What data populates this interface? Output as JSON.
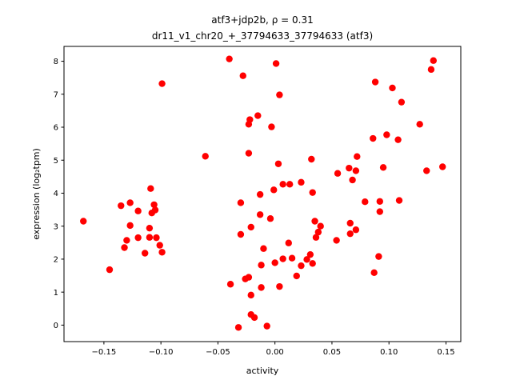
{
  "chart_data": {
    "type": "scatter",
    "title_line1": "atf3+jdp2b, ρ = 0.31",
    "title_line2": "dr11_v1_chr20_+_37794633_37794633 (atf3)",
    "xlabel": "activity",
    "ylabel": "expression (log₂tpm)",
    "xlim": [
      -0.185,
      0.163
    ],
    "ylim": [
      -0.5,
      8.45
    ],
    "xticks": [
      -0.15,
      -0.1,
      -0.05,
      0.0,
      0.05,
      0.1,
      0.15
    ],
    "xtick_labels": [
      "−0.15",
      "−0.10",
      "−0.05",
      "0.00",
      "0.05",
      "0.10",
      "0.15"
    ],
    "yticks": [
      0,
      1,
      2,
      3,
      4,
      5,
      6,
      7,
      8
    ],
    "ytick_labels": [
      "0",
      "1",
      "2",
      "3",
      "4",
      "5",
      "6",
      "7",
      "8"
    ],
    "grid": false,
    "marker_color": "#ff0000",
    "points": [
      [
        -0.168,
        3.15
      ],
      [
        -0.145,
        1.68
      ],
      [
        -0.135,
        3.62
      ],
      [
        -0.132,
        2.35
      ],
      [
        -0.13,
        2.57
      ],
      [
        -0.127,
        3.71
      ],
      [
        -0.127,
        3.02
      ],
      [
        -0.12,
        2.65
      ],
      [
        -0.12,
        3.46
      ],
      [
        -0.114,
        2.18
      ],
      [
        -0.11,
        2.94
      ],
      [
        -0.11,
        2.66
      ],
      [
        -0.109,
        4.14
      ],
      [
        -0.108,
        3.4
      ],
      [
        -0.106,
        3.65
      ],
      [
        -0.105,
        3.49
      ],
      [
        -0.104,
        2.65
      ],
      [
        -0.101,
        2.42
      ],
      [
        -0.099,
        2.21
      ],
      [
        -0.099,
        7.32
      ],
      [
        -0.061,
        5.12
      ],
      [
        -0.04,
        8.07
      ],
      [
        -0.039,
        1.24
      ],
      [
        -0.032,
        -0.07
      ],
      [
        -0.03,
        3.71
      ],
      [
        -0.03,
        2.75
      ],
      [
        -0.028,
        7.56
      ],
      [
        -0.026,
        1.4
      ],
      [
        -0.023,
        1.45
      ],
      [
        -0.023,
        6.09
      ],
      [
        -0.023,
        5.21
      ],
      [
        -0.022,
        6.23
      ],
      [
        -0.021,
        2.97
      ],
      [
        -0.021,
        0.91
      ],
      [
        -0.021,
        0.32
      ],
      [
        -0.018,
        0.23
      ],
      [
        -0.015,
        6.35
      ],
      [
        -0.013,
        3.96
      ],
      [
        -0.013,
        3.35
      ],
      [
        -0.012,
        1.82
      ],
      [
        -0.012,
        1.14
      ],
      [
        -0.01,
        2.32
      ],
      [
        -0.007,
        -0.03
      ],
      [
        -0.004,
        3.23
      ],
      [
        -0.003,
        6.01
      ],
      [
        -0.001,
        4.1
      ],
      [
        0.0,
        1.89
      ],
      [
        0.001,
        7.93
      ],
      [
        0.003,
        4.89
      ],
      [
        0.004,
        6.98
      ],
      [
        0.004,
        1.17
      ],
      [
        0.007,
        4.27
      ],
      [
        0.007,
        2.01
      ],
      [
        0.012,
        2.49
      ],
      [
        0.013,
        4.27
      ],
      [
        0.015,
        2.03
      ],
      [
        0.019,
        1.49
      ],
      [
        0.023,
        4.33
      ],
      [
        0.023,
        1.8
      ],
      [
        0.028,
        1.99
      ],
      [
        0.031,
        2.14
      ],
      [
        0.032,
        5.03
      ],
      [
        0.033,
        4.02
      ],
      [
        0.033,
        1.87
      ],
      [
        0.035,
        3.15
      ],
      [
        0.036,
        2.66
      ],
      [
        0.038,
        2.82
      ],
      [
        0.04,
        3.0
      ],
      [
        0.054,
        2.57
      ],
      [
        0.055,
        4.6
      ],
      [
        0.065,
        4.76
      ],
      [
        0.066,
        3.09
      ],
      [
        0.066,
        2.77
      ],
      [
        0.068,
        4.4
      ],
      [
        0.071,
        4.68
      ],
      [
        0.071,
        2.89
      ],
      [
        0.072,
        5.11
      ],
      [
        0.079,
        3.74
      ],
      [
        0.086,
        5.66
      ],
      [
        0.087,
        1.59
      ],
      [
        0.088,
        7.37
      ],
      [
        0.091,
        2.08
      ],
      [
        0.092,
        3.44
      ],
      [
        0.092,
        3.75
      ],
      [
        0.095,
        4.78
      ],
      [
        0.098,
        5.77
      ],
      [
        0.103,
        7.19
      ],
      [
        0.108,
        5.62
      ],
      [
        0.109,
        3.78
      ],
      [
        0.111,
        6.76
      ],
      [
        0.127,
        6.09
      ],
      [
        0.133,
        4.68
      ],
      [
        0.137,
        7.75
      ],
      [
        0.139,
        8.02
      ],
      [
        0.147,
        4.8
      ]
    ]
  }
}
